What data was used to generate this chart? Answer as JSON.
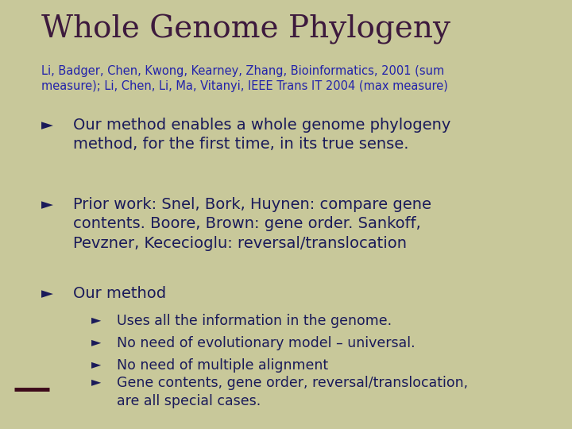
{
  "background_color": "#c8c89a",
  "title": "Whole Genome Phylogeny",
  "title_color": "#3d1a3d",
  "title_fontsize": 28,
  "subtitle": "Li, Badger, Chen, Kwong, Kearney, Zhang, Bioinformatics, 2001 (sum\nmeasure); Li, Chen, Li, Ma, Vitanyi, IEEE Trans IT 2004 (max measure)",
  "subtitle_color": "#2222aa",
  "subtitle_fontsize": 10.5,
  "bullet_color": "#1a1a5a",
  "bullet_fontsize": 14,
  "sub_bullet_fontsize": 12.5,
  "accent_line_color": "#3d0a1a",
  "bullets": [
    "Our method enables a whole genome phylogeny\nmethod, for the first time, in its true sense.",
    "Prior work: Snel, Bork, Huynen: compare gene\ncontents. Boore, Brown: gene order. Sankoff,\nPevzner, Kececioglu: reversal/translocation",
    "Our method"
  ],
  "sub_bullets": [
    "Uses all the information in the genome.",
    "No need of evolutionary model – universal.",
    "No need of multiple alignment",
    "Gene contents, gene order, reversal/translocation,\nare all special cases."
  ]
}
